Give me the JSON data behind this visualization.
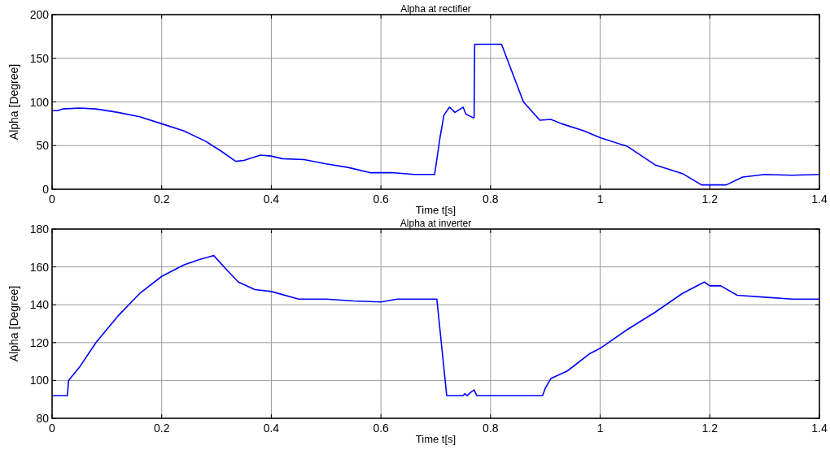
{
  "chart_data": [
    {
      "type": "line",
      "title": "Alpha at rectifier",
      "xlabel": "Time t[s]",
      "ylabel": "Alpha [Degree]",
      "xlim": [
        0,
        1.4
      ],
      "ylim": [
        0,
        200
      ],
      "xticks": [
        0,
        0.2,
        0.4,
        0.6,
        0.8,
        1,
        1.2,
        1.4
      ],
      "yticks": [
        0,
        50,
        100,
        150,
        200
      ],
      "grid": true,
      "line_style": "solid",
      "series": [
        {
          "color": "#0000ff",
          "x": [
            0,
            0.01,
            0.02,
            0.05,
            0.08,
            0.12,
            0.16,
            0.2,
            0.24,
            0.28,
            0.31,
            0.335,
            0.35,
            0.38,
            0.4,
            0.42,
            0.46,
            0.5,
            0.54,
            0.58,
            0.62,
            0.66,
            0.698,
            0.708,
            0.715,
            0.725,
            0.735,
            0.75,
            0.755,
            0.768,
            0.77,
            0.771,
            0.8,
            0.82,
            0.86,
            0.89,
            0.91,
            0.93,
            0.97,
            1,
            1.05,
            1.1,
            1.15,
            1.185,
            1.23,
            1.26,
            1.3,
            1.35,
            1.4
          ],
          "values": [
            90,
            90,
            92,
            93,
            92,
            88,
            83,
            75,
            67,
            55,
            43,
            32,
            33,
            39,
            38,
            35,
            34,
            29,
            25,
            19,
            19,
            17,
            17,
            60,
            85,
            94,
            88,
            94,
            86,
            82,
            82,
            166,
            166,
            166,
            100,
            79,
            80,
            75,
            67,
            59,
            49,
            28,
            18,
            5,
            5,
            14,
            17,
            16,
            17
          ]
        }
      ]
    },
    {
      "type": "line",
      "title": "Alpha at inverter",
      "xlabel": "Time t[s]",
      "ylabel": "Alpha [Degree]",
      "xlim": [
        0,
        1.4
      ],
      "ylim": [
        80,
        180
      ],
      "xticks": [
        0,
        0.2,
        0.4,
        0.6,
        0.8,
        1,
        1.2,
        1.4
      ],
      "yticks": [
        80,
        100,
        120,
        140,
        160,
        180
      ],
      "grid": true,
      "line_style": "solid",
      "series": [
        {
          "color": "#0000ff",
          "x": [
            0,
            0.028,
            0.03,
            0.05,
            0.08,
            0.12,
            0.16,
            0.2,
            0.24,
            0.27,
            0.295,
            0.32,
            0.34,
            0.37,
            0.4,
            0.45,
            0.5,
            0.55,
            0.6,
            0.63,
            0.65,
            0.7,
            0.702,
            0.72,
            0.75,
            0.753,
            0.757,
            0.765,
            0.77,
            0.775,
            0.8,
            0.895,
            0.9,
            0.91,
            0.94,
            0.98,
            1,
            1.05,
            1.1,
            1.15,
            1.19,
            1.2,
            1.22,
            1.25,
            1.3,
            1.35,
            1.4
          ],
          "values": [
            92,
            92,
            100,
            107,
            120,
            134,
            146,
            155,
            161,
            164,
            166,
            158,
            152,
            148,
            147,
            143,
            143,
            142,
            141.5,
            143,
            143,
            143,
            143,
            92,
            92,
            93,
            92,
            94,
            95,
            92,
            92,
            92,
            96,
            101,
            105,
            114,
            117,
            127,
            136,
            146,
            152,
            150,
            150,
            145,
            144,
            143,
            143
          ]
        }
      ]
    }
  ]
}
